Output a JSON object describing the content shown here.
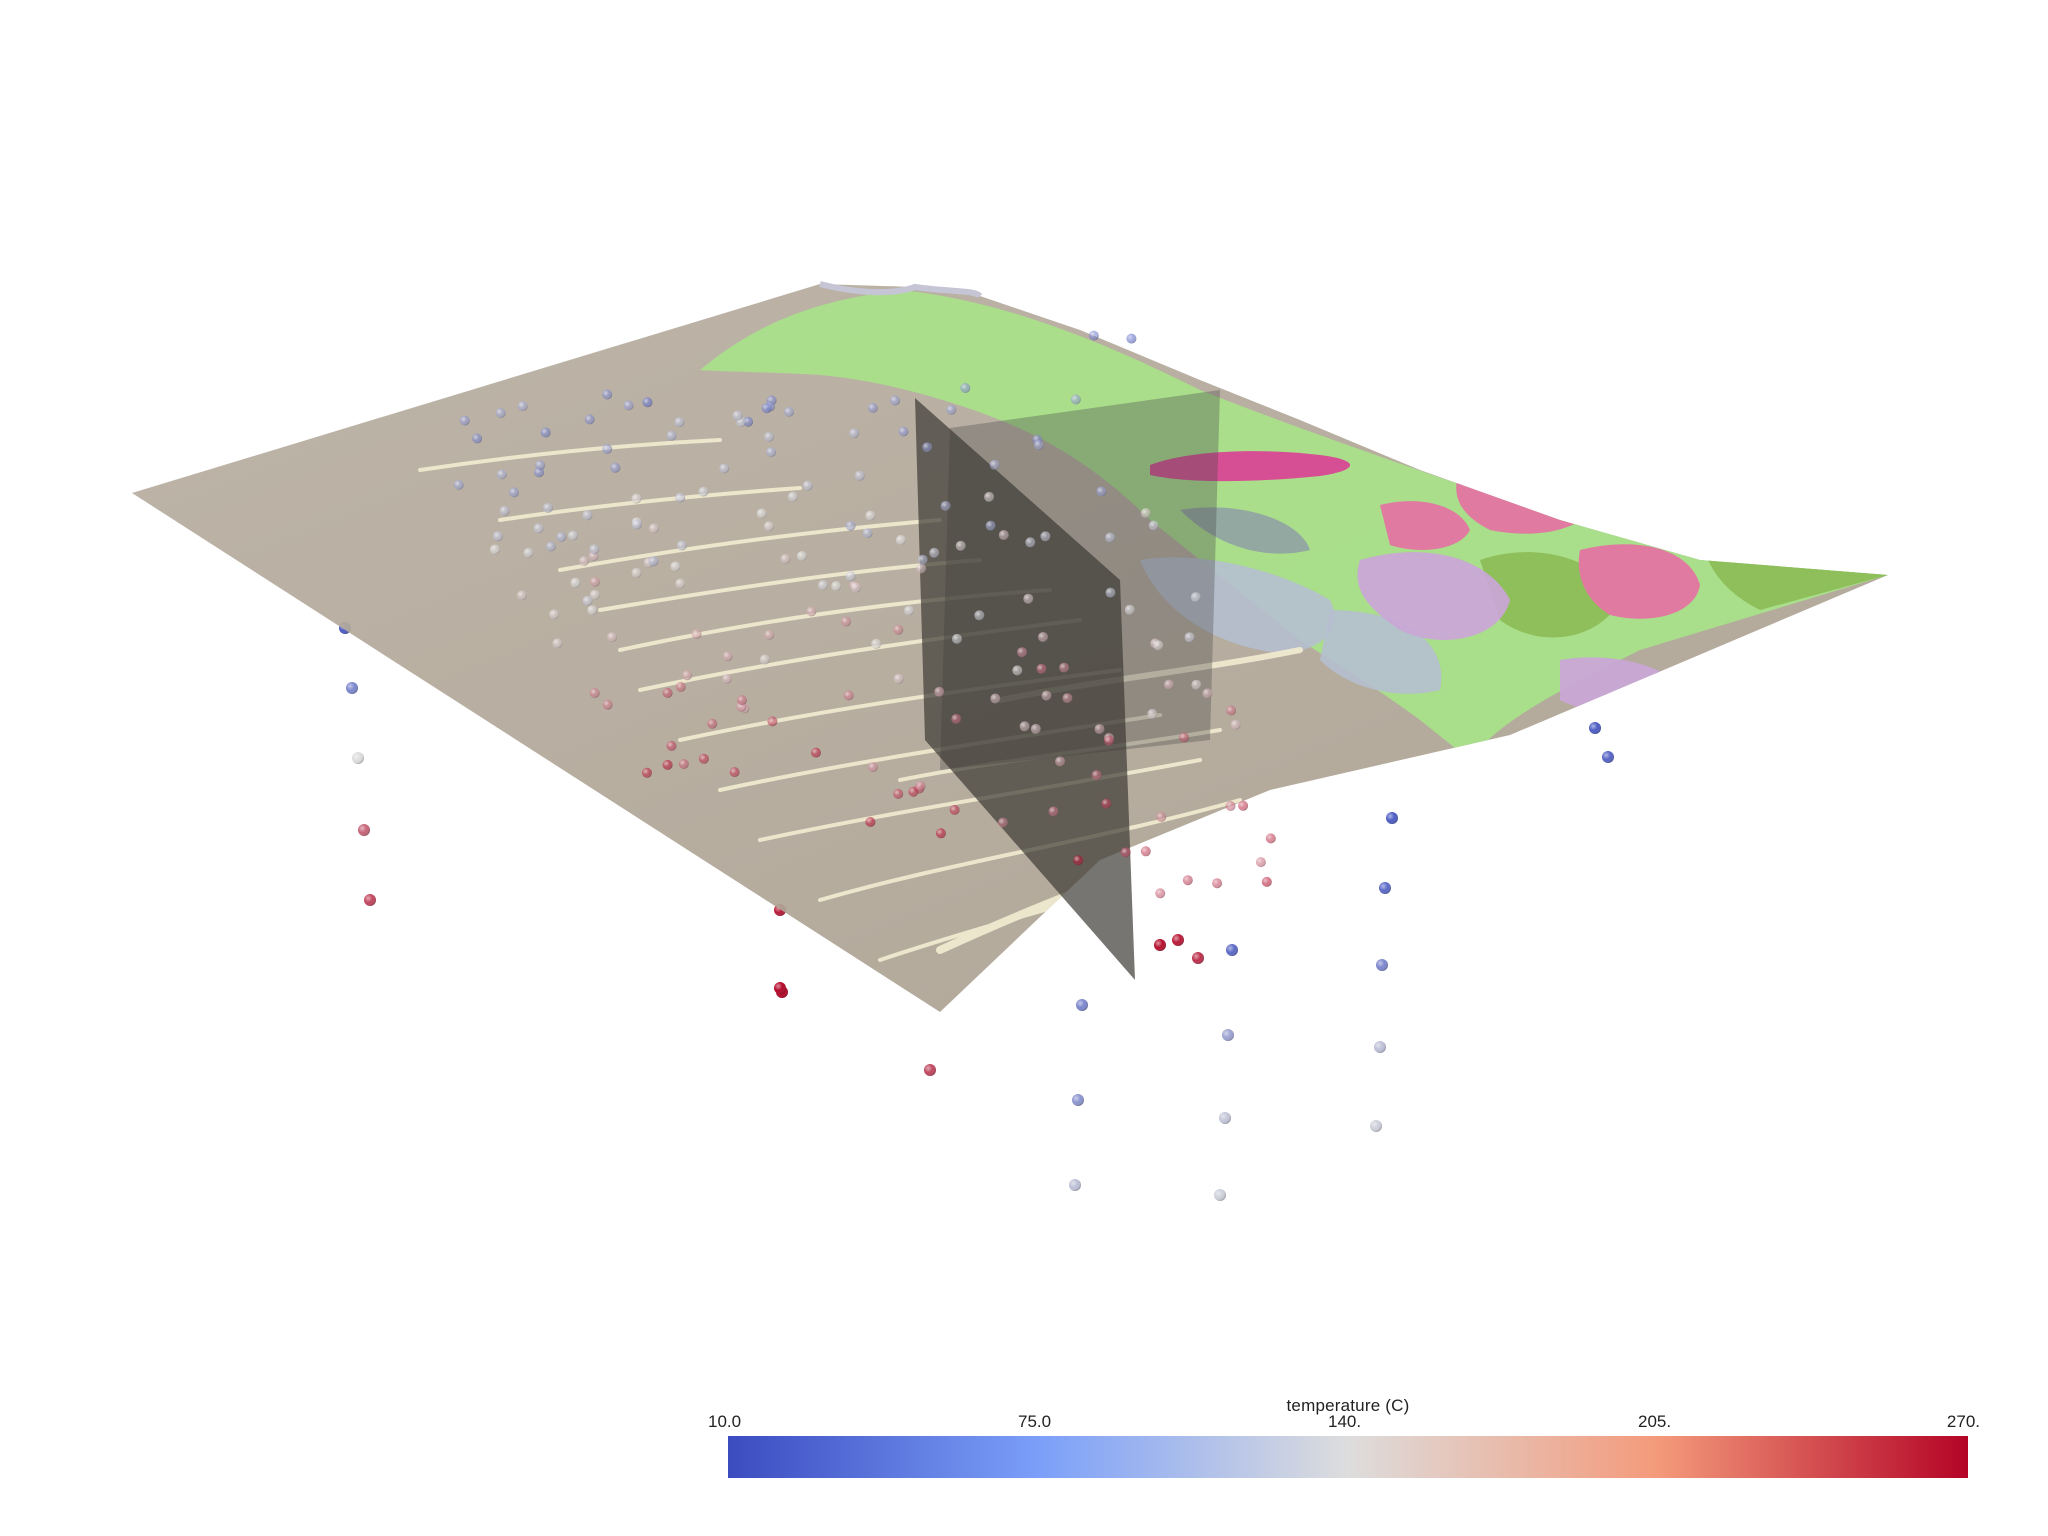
{
  "scene": {
    "terrain_colors": {
      "desert": "#b5aa9c",
      "channel": "#efe9cf",
      "green": "#a9e08a",
      "dark_green": "#8fbf5a",
      "pink": "#e07aa0",
      "magenta": "#d64e93",
      "lilac": "#c9a6d6",
      "blue_grey": "#b5bfcf",
      "slate": "#8fa2a3"
    },
    "fault_plane_color": "#3d3b35",
    "sample_point_count": 190
  },
  "colorbar": {
    "title": "temperature (C)",
    "min": 10,
    "max": 270,
    "ticks": [
      {
        "label": "10.0",
        "value": 10
      },
      {
        "label": "75.0",
        "value": 75
      },
      {
        "label": "140.",
        "value": 140
      },
      {
        "label": "205.",
        "value": 205
      },
      {
        "label": "270.",
        "value": 270
      }
    ],
    "colormap": "coolwarm",
    "low_color": "#3b4cc0",
    "mid_color": "#dddddd",
    "high_color": "#b40426"
  }
}
